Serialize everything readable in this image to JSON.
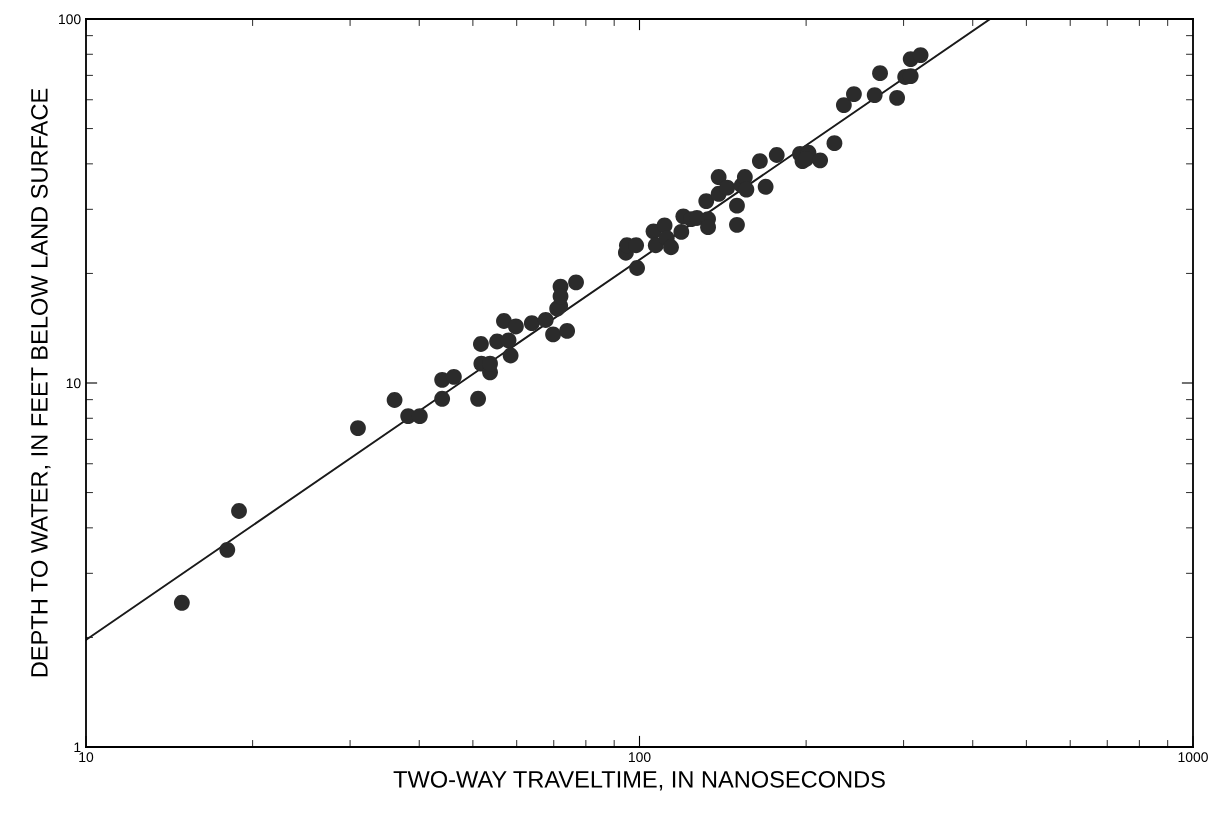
{
  "chart_data": {
    "type": "scatter",
    "xlabel": "TWO-WAY TRAVELTIME, IN NANOSECONDS",
    "ylabel": "DEPTH TO WATER, IN FEET BELOW LAND SURFACE",
    "log": "xy",
    "xlim": [
      10,
      1000
    ],
    "ylim": [
      1,
      100
    ],
    "xticks": [
      10,
      100,
      1000
    ],
    "yticks": [
      1,
      10,
      100
    ],
    "grid": false,
    "marker": "circle",
    "series": [
      {
        "color": "#2b2b2b",
        "x": [
          14.9,
          18.0,
          18.9,
          31.0,
          36.1,
          38.2,
          40.1,
          44.0,
          44.0,
          46.2,
          51.1,
          51.7,
          51.8,
          53.7,
          53.7,
          55.3,
          56.9,
          58.0,
          58.5,
          59.8,
          63.9,
          67.7,
          69.8,
          71.0,
          71.9,
          72.0,
          72.0,
          74.0,
          76.8,
          94.5,
          94.9,
          98.6,
          99.0,
          106,
          107,
          111,
          112,
          114,
          119,
          120,
          124,
          127,
          132,
          133,
          133,
          139,
          139,
          144,
          150,
          150,
          153,
          155,
          156,
          165,
          169,
          177,
          195,
          197,
          202,
          200,
          212,
          225,
          234,
          244,
          266,
          272,
          292,
          302,
          309,
          309,
          322
        ],
        "values": [
          2.49,
          3.48,
          4.45,
          7.52,
          8.98,
          8.11,
          8.11,
          9.05,
          10.2,
          10.4,
          9.05,
          12.8,
          11.3,
          10.7,
          11.3,
          13.0,
          14.8,
          13.1,
          11.9,
          14.3,
          14.6,
          14.9,
          13.6,
          16.0,
          16.3,
          18.4,
          17.3,
          13.9,
          18.9,
          22.8,
          23.9,
          23.9,
          20.7,
          26.1,
          23.9,
          27.1,
          25.0,
          23.6,
          26.0,
          28.7,
          28.2,
          28.4,
          31.6,
          28.2,
          26.8,
          36.8,
          33.1,
          34.4,
          30.7,
          27.2,
          34.9,
          36.8,
          34.0,
          40.7,
          34.6,
          42.3,
          42.6,
          40.7,
          42.9,
          41.3,
          40.9,
          45.6,
          58.0,
          62.2,
          61.8,
          71.0,
          60.7,
          69.3,
          69.7,
          77.6,
          79.6
        ]
      },
      {
        "type": "line",
        "color": "#1a1a1a",
        "x": [
          10,
          430
        ],
        "values": [
          1.97,
          100
        ],
        "marker": "none",
        "line_style": "solid"
      }
    ]
  }
}
